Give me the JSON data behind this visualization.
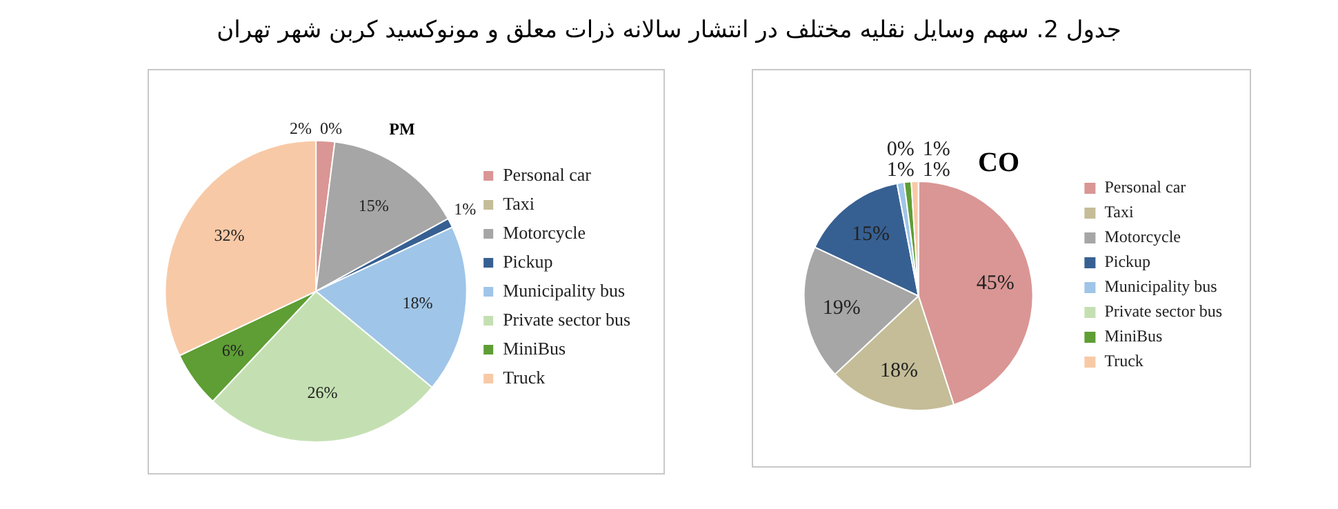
{
  "chart_data": [
    {
      "type": "pie",
      "title": "PM",
      "annotations": [
        "جدول 2. سهم وسایل نقلیه مختلف در انتشار سالانه ذرات معلق و مونوکسید کربن شهر تهران"
      ],
      "categories": [
        "Personal car",
        "Taxi",
        "Motorcycle",
        "Pickup",
        "Municipality bus",
        "Private sector bus",
        "MiniBus",
        "Truck"
      ],
      "values": [
        2,
        0,
        15,
        1,
        18,
        26,
        6,
        32
      ],
      "value_labels": [
        "2%",
        "0%",
        "15%",
        "1%",
        "18%",
        "26%",
        "6%",
        "32%"
      ],
      "colors": [
        "#d99694",
        "#c4bd97",
        "#a6a6a6",
        "#376092",
        "#9fc5e8",
        "#c4e0b2",
        "#5e9e34",
        "#f8c9a6"
      ],
      "legend": "right"
    },
    {
      "type": "pie",
      "title": "CO",
      "categories": [
        "Personal car",
        "Taxi",
        "Motorcycle",
        "Pickup",
        "Municipality bus",
        "Private sector bus",
        "MiniBus",
        "Truck"
      ],
      "values": [
        45,
        18,
        19,
        15,
        1,
        0,
        1,
        1
      ],
      "value_labels": [
        "45%",
        "18%",
        "19%",
        "15%",
        "1%",
        "0%",
        "1%",
        "1%"
      ],
      "colors": [
        "#d99694",
        "#c4bd97",
        "#a6a6a6",
        "#376092",
        "#9fc5e8",
        "#c4e0b2",
        "#5e9e34",
        "#f8c9a6"
      ],
      "legend": "right"
    }
  ]
}
